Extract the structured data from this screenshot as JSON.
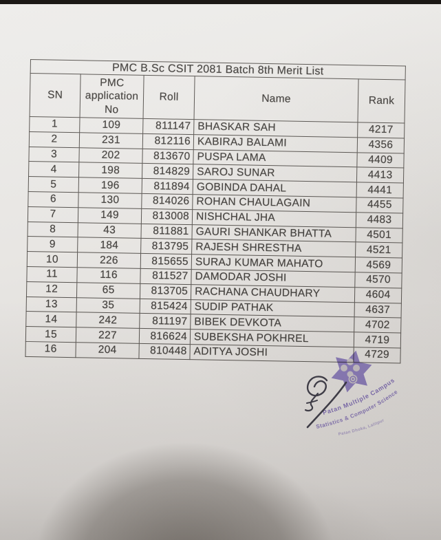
{
  "document": {
    "title": "PMC B.Sc CSIT 2081 Batch 8th Merit List",
    "table": {
      "columns": [
        "SN",
        "PMC application No",
        "Roll",
        "Name",
        "Rank"
      ],
      "column_keys": [
        "sn",
        "application-no",
        "roll",
        "name",
        "rank"
      ],
      "rows": [
        [
          "1",
          "109",
          "811147",
          "BHASKAR SAH",
          "4217"
        ],
        [
          "2",
          "231",
          "812116",
          "KABIRAJ BALAMI",
          "4356"
        ],
        [
          "3",
          "202",
          "813670",
          "PUSPA LAMA",
          "4409"
        ],
        [
          "4",
          "198",
          "814829",
          "SAROJ SUNAR",
          "4413"
        ],
        [
          "5",
          "196",
          "811894",
          "GOBINDA DAHAL",
          "4441"
        ],
        [
          "6",
          "130",
          "814026",
          "ROHAN CHAULAGAIN",
          "4455"
        ],
        [
          "7",
          "149",
          "813008",
          "NISHCHAL JHA",
          "4483"
        ],
        [
          "8",
          "43",
          "811881",
          "GAURI SHANKAR BHATTA",
          "4501"
        ],
        [
          "9",
          "184",
          "813795",
          "RAJESH SHRESTHA",
          "4521"
        ],
        [
          "10",
          "226",
          "815655",
          "SURAJ KUMAR MAHATO",
          "4569"
        ],
        [
          "11",
          "116",
          "811527",
          "DAMODAR JOSHI",
          "4570"
        ],
        [
          "12",
          "65",
          "813705",
          "RACHANA CHAUDHARY",
          "4604"
        ],
        [
          "13",
          "35",
          "815424",
          "SUDIP PATHAK",
          "4637"
        ],
        [
          "14",
          "242",
          "811197",
          "BIBEK DEVKOTA",
          "4702"
        ],
        [
          "15",
          "227",
          "816624",
          "SUBEKSHA POKHREL",
          "4719"
        ],
        [
          "16",
          "204",
          "810448",
          "ADITYA JOSHI",
          "4729"
        ]
      ]
    },
    "stamp": {
      "arc_line_1": "Patan Multiple Campus",
      "arc_line_2": "Statistics & Computer Science",
      "arc_line_3": "Patan Dhoka, Lalitpur",
      "shape": "six-pointed-star-stamp",
      "color": "#7f6ac9"
    },
    "signature": {
      "type": "handwritten-signature",
      "ink_color": "#32303b"
    }
  },
  "colors": {
    "paper": "#e7e4e1",
    "table_line": "#57534f",
    "text": "#45423f",
    "photo_edge": "#1b1815",
    "stamp_purple": "#8673cc"
  }
}
